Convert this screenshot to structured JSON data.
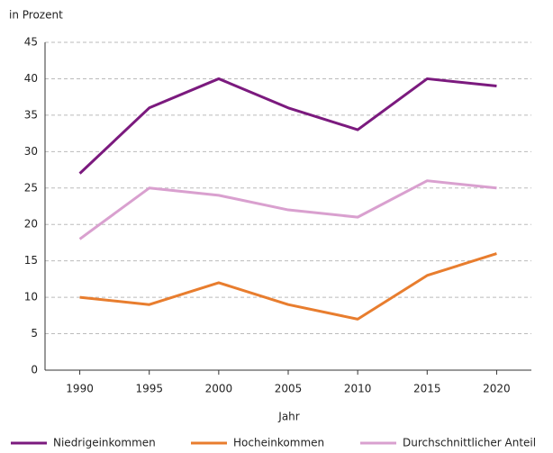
{
  "chart_data": {
    "type": "line",
    "ylabel": "in Prozent",
    "xlabel": "Jahr",
    "x": [
      1990,
      1995,
      2000,
      2005,
      2010,
      2015,
      2020
    ],
    "xlim": [
      1987.5,
      2022.5
    ],
    "xticks": [
      1990,
      1995,
      2000,
      2005,
      2010,
      2015,
      2020
    ],
    "ylim": [
      0,
      45
    ],
    "yticks": [
      0,
      5,
      10,
      15,
      20,
      25,
      30,
      35,
      40,
      45
    ],
    "grid": true,
    "legend": "bottom",
    "series": [
      {
        "name": "Niedrigeinkommen",
        "color": "#7b1a7e",
        "values": [
          27,
          36,
          40,
          36,
          33,
          40,
          39
        ]
      },
      {
        "name": "Hocheinkommen",
        "color": "#e87d2e",
        "values": [
          10,
          9,
          12,
          9,
          7,
          13,
          16
        ]
      },
      {
        "name": "Durchschnittlicher Anteil",
        "color": "#d9a0cf",
        "values": [
          18,
          25,
          24,
          22,
          21,
          26,
          25
        ]
      }
    ]
  }
}
